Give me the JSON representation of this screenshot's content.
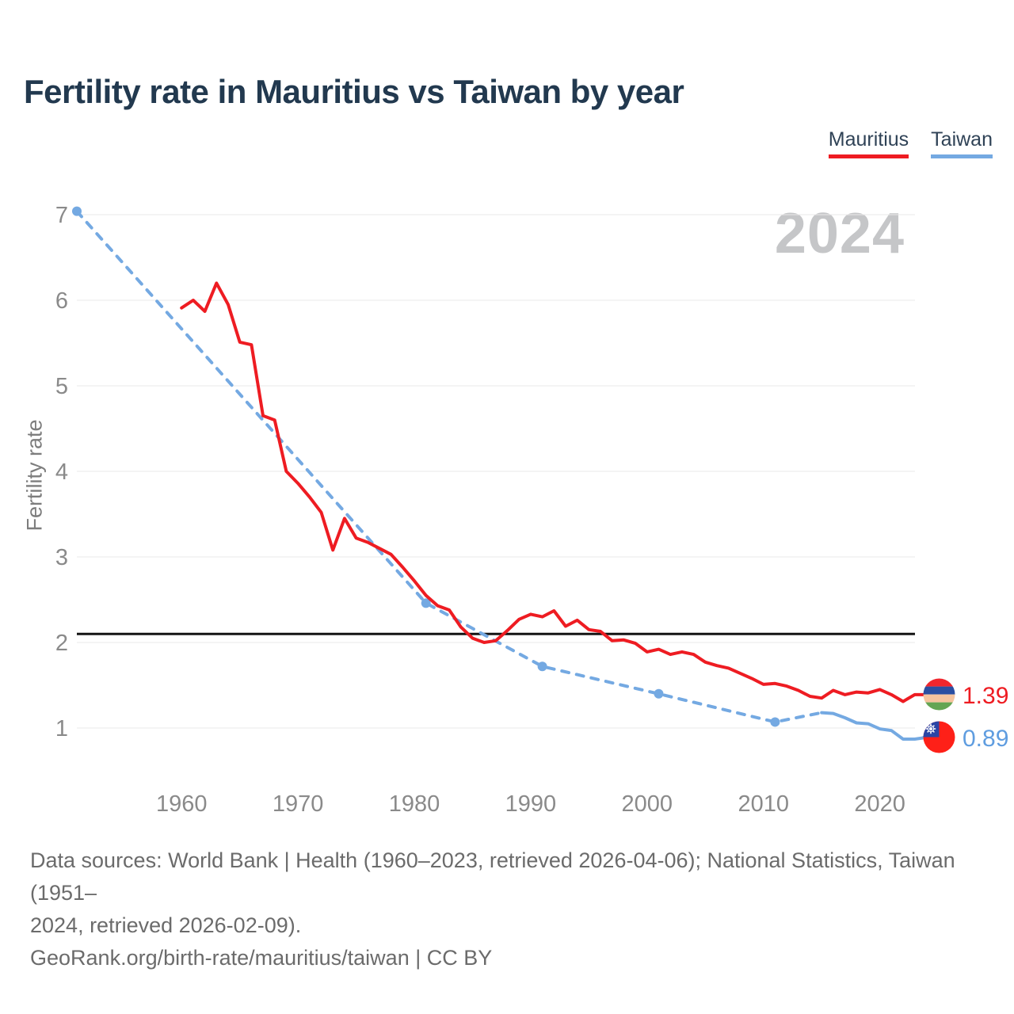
{
  "title": "Fertility rate in Mauritius vs Taiwan by year",
  "watermark_year": "2024",
  "legend": {
    "position": "top-right",
    "items": [
      {
        "label": "Mauritius",
        "color": "#ee1c22"
      },
      {
        "label": "Taiwan",
        "color": "#74a9e2"
      }
    ]
  },
  "chart_data": {
    "type": "line",
    "title": "Fertility rate in Mauritius vs Taiwan by year",
    "xlabel": "",
    "ylabel": "Fertility rate",
    "xlim": [
      1951,
      2024
    ],
    "ylim": [
      1,
      7
    ],
    "x_ticks": [
      1960,
      1970,
      1980,
      1990,
      2000,
      2010,
      2020
    ],
    "y_ticks": [
      1,
      2,
      3,
      4,
      5,
      6,
      7
    ],
    "grid": "horizontal",
    "legend_position": "top-right",
    "watermark": "2024",
    "reference_line": {
      "value": 2.1,
      "color": "#141414"
    },
    "series": [
      {
        "name": "Mauritius",
        "color": "#ee1c22",
        "style": "solid",
        "end_label": "1.39",
        "years": [
          1960,
          1961,
          1962,
          1963,
          1964,
          1965,
          1966,
          1967,
          1968,
          1969,
          1970,
          1971,
          1972,
          1973,
          1974,
          1975,
          1976,
          1977,
          1978,
          1979,
          1980,
          1981,
          1982,
          1983,
          1984,
          1985,
          1986,
          1987,
          1988,
          1989,
          1990,
          1991,
          1992,
          1993,
          1994,
          1995,
          1996,
          1997,
          1998,
          1999,
          2000,
          2001,
          2002,
          2003,
          2004,
          2005,
          2006,
          2007,
          2008,
          2009,
          2010,
          2011,
          2012,
          2013,
          2014,
          2015,
          2016,
          2017,
          2018,
          2019,
          2020,
          2021,
          2022,
          2023
        ],
        "values": [
          5.91,
          6.0,
          5.87,
          6.2,
          5.95,
          5.51,
          5.48,
          4.65,
          4.6,
          4.0,
          3.86,
          3.7,
          3.52,
          3.08,
          3.45,
          3.22,
          3.17,
          3.1,
          3.03,
          2.88,
          2.72,
          2.55,
          2.43,
          2.38,
          2.18,
          2.05,
          2.0,
          2.02,
          2.14,
          2.27,
          2.33,
          2.3,
          2.37,
          2.19,
          2.26,
          2.15,
          2.13,
          2.02,
          2.03,
          1.99,
          1.89,
          1.92,
          1.86,
          1.89,
          1.86,
          1.77,
          1.73,
          1.7,
          1.64,
          1.58,
          1.51,
          1.52,
          1.49,
          1.44,
          1.37,
          1.35,
          1.44,
          1.39,
          1.42,
          1.41,
          1.45,
          1.39,
          1.31,
          1.39
        ]
      },
      {
        "name": "Taiwan",
        "color": "#74a9e2",
        "style": "dashed-then-solid",
        "solid_from_year": 2015,
        "marker_years": [
          1951,
          1981,
          1991,
          2001,
          2011
        ],
        "end_label": "0.89",
        "years": [
          1951,
          1981,
          1991,
          2001,
          2011,
          2015,
          2016,
          2017,
          2018,
          2019,
          2020,
          2021,
          2022,
          2023,
          2024
        ],
        "values": [
          7.04,
          2.46,
          1.72,
          1.4,
          1.07,
          1.18,
          1.17,
          1.12,
          1.06,
          1.05,
          0.99,
          0.97,
          0.87,
          0.87,
          0.89
        ]
      }
    ]
  },
  "footer": {
    "line1": "Data sources: World Bank | Health (1960–2023, retrieved 2026-04-06); National Statistics, Taiwan (1951–",
    "line2": "2024, retrieved 2026-02-09).",
    "line3": "GeoRank.org/birth-rate/mauritius/taiwan | CC BY"
  }
}
